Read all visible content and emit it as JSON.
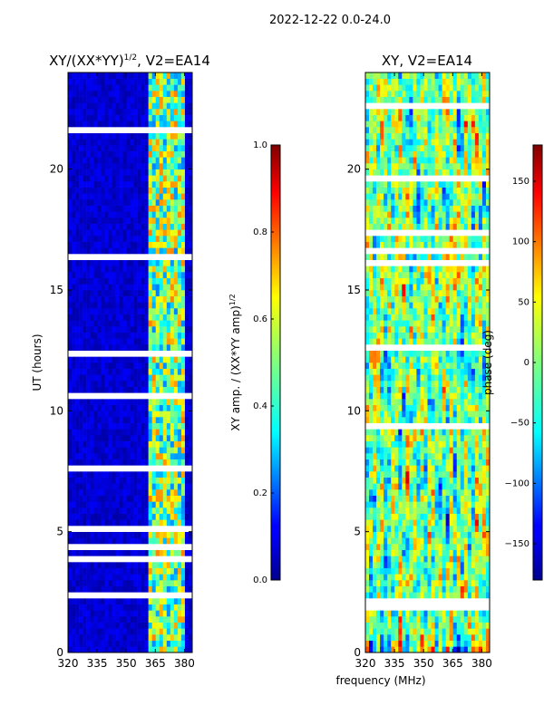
{
  "figure": {
    "suptitle": "2022-12-22 0.0-24.0",
    "shared_xlabel": "frequency (MHz)"
  },
  "chart_data": [
    {
      "type": "heatmap",
      "title": "XY/(XX*YY)",
      "title_sup": "1/2",
      "title_suffix": ", V2=EA14",
      "ylabel": "UT (hours)",
      "xlim": [
        320,
        384
      ],
      "ylim": [
        0,
        24
      ],
      "xticks": [
        320,
        335,
        350,
        365,
        380
      ],
      "yticks": [
        0,
        5,
        10,
        15,
        20
      ],
      "colorbar": {
        "label": "XY amp. / (XX*YY amp)",
        "label_sup": "1/2",
        "range": [
          0.0,
          1.0
        ],
        "ticks": [
          "0.0",
          "0.2",
          "0.4",
          "0.6",
          "0.8",
          "1.0"
        ],
        "colormap": "jet"
      },
      "description": "normalized cross-correlation amplitude; mostly low (~0.05) with high-amplitude band at ~362-380 MHz"
    },
    {
      "type": "heatmap",
      "title": "XY, V2=EA14",
      "xlim": [
        320,
        384
      ],
      "ylim": [
        0,
        24
      ],
      "xticks": [
        320,
        335,
        350,
        365,
        380
      ],
      "yticks": [
        0,
        5,
        10,
        15,
        20
      ],
      "colorbar": {
        "label": "phase (deg)",
        "range": [
          -180,
          180
        ],
        "ticks": [
          "−150",
          "−100",
          "−50",
          "0",
          "50",
          "100",
          "150"
        ],
        "colormap": "jet"
      },
      "description": "cross-correlation phase; noisy, varying over full range"
    }
  ],
  "colors": {
    "jet_low": "#00008f",
    "jet_high": "#800000"
  }
}
